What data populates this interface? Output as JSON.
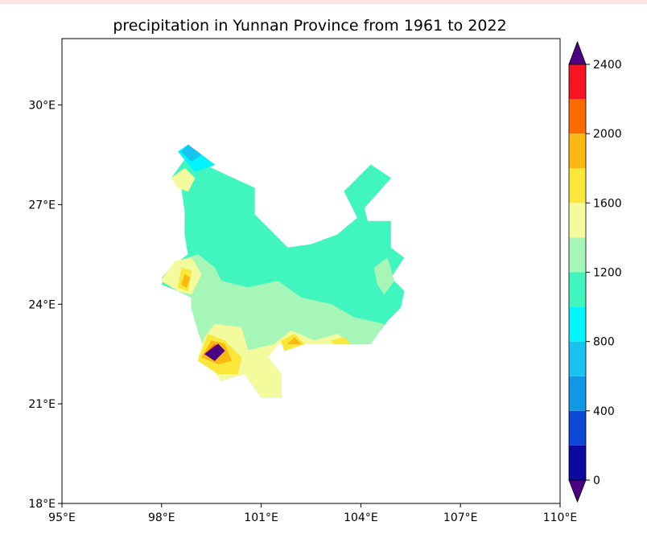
{
  "chart_data": {
    "type": "contour-map",
    "title": "precipitation in Yunnan Province from 1961 to 2022",
    "xlabel": "",
    "ylabel": "",
    "x_axis": {
      "range": [
        95,
        110
      ],
      "ticks": [
        95,
        98,
        101,
        104,
        107,
        110
      ],
      "tick_labels": [
        "95°E",
        "98°E",
        "101°E",
        "104°E",
        "107°E",
        "110°E"
      ]
    },
    "y_axis": {
      "range": [
        18,
        32
      ],
      "ticks": [
        18,
        21,
        24,
        27,
        30
      ],
      "tick_labels": [
        "18°E",
        "21°E",
        "24°E",
        "27°E",
        "30°E"
      ]
    },
    "colorbar": {
      "min": 0,
      "max": 2400,
      "step": 200,
      "extend": "both",
      "tick_values": [
        0,
        400,
        800,
        1200,
        1600,
        2000,
        2400
      ],
      "tick_labels": [
        "0",
        "400",
        "800",
        "1200",
        "1600",
        "2000",
        "2400"
      ],
      "under_color": "#4b0082",
      "over_color": "#4b0082",
      "colors": [
        "#0a0aa0",
        "#0d47d8",
        "#1296e6",
        "#19c3f0",
        "#00f5ff",
        "#40f5be",
        "#a6f7b7",
        "#f3fb9d",
        "#f9e739",
        "#fbb813",
        "#fd6b00",
        "#f41520"
      ]
    },
    "regions": [
      {
        "level": 1000,
        "shape": [
          [
            98.3,
            27.8
          ],
          [
            98.8,
            28.5
          ],
          [
            99.5,
            28.1
          ],
          [
            100.8,
            27.5
          ],
          [
            100.8,
            26.7
          ],
          [
            101.2,
            26.3
          ],
          [
            101.8,
            25.7
          ],
          [
            102.5,
            25.8
          ],
          [
            103.3,
            26.1
          ],
          [
            103.9,
            26.6
          ],
          [
            103.5,
            27.4
          ],
          [
            104.3,
            28.2
          ],
          [
            104.9,
            27.8
          ],
          [
            104.1,
            26.9
          ],
          [
            104.2,
            26.5
          ],
          [
            104.9,
            26.5
          ],
          [
            104.9,
            25.7
          ],
          [
            105.3,
            25.4
          ],
          [
            104.9,
            24.8
          ],
          [
            105.3,
            24.4
          ],
          [
            105.2,
            23.9
          ],
          [
            104.8,
            23.5
          ],
          [
            104.5,
            23.1
          ],
          [
            104.1,
            22.8
          ],
          [
            103.4,
            22.8
          ],
          [
            102.6,
            22.9
          ],
          [
            101.5,
            22.9
          ],
          [
            101.2,
            22.4
          ],
          [
            101.6,
            21.9
          ],
          [
            101.6,
            21.2
          ],
          [
            101.0,
            21.2
          ],
          [
            100.5,
            21.9
          ],
          [
            99.8,
            21.7
          ],
          [
            99.4,
            22.3
          ],
          [
            99.1,
            23.2
          ],
          [
            98.9,
            23.9
          ],
          [
            98.9,
            24.2
          ],
          [
            98.5,
            24.4
          ],
          [
            98.0,
            24.6
          ],
          [
            98.4,
            25.2
          ],
          [
            98.8,
            25.5
          ],
          [
            98.7,
            26.1
          ],
          [
            98.7,
            26.8
          ],
          [
            98.6,
            27.5
          ]
        ]
      },
      {
        "level": 1200,
        "shape": [
          [
            98.5,
            24.4
          ],
          [
            98.0,
            24.8
          ],
          [
            98.5,
            25.3
          ],
          [
            99.1,
            25.5
          ],
          [
            99.6,
            25.1
          ],
          [
            99.8,
            24.7
          ],
          [
            100.6,
            24.5
          ],
          [
            101.5,
            24.7
          ],
          [
            102.2,
            24.2
          ],
          [
            103.1,
            24.0
          ],
          [
            103.8,
            23.6
          ],
          [
            104.7,
            23.4
          ],
          [
            104.3,
            22.8
          ],
          [
            103.4,
            22.8
          ],
          [
            102.6,
            22.9
          ],
          [
            101.5,
            22.9
          ],
          [
            101.2,
            22.4
          ],
          [
            101.6,
            21.9
          ],
          [
            101.6,
            21.2
          ],
          [
            101.0,
            21.2
          ],
          [
            100.5,
            21.9
          ],
          [
            99.8,
            21.7
          ],
          [
            99.4,
            22.3
          ],
          [
            99.1,
            23.2
          ],
          [
            98.9,
            23.9
          ],
          [
            98.9,
            24.2
          ]
        ]
      },
      {
        "level": 1200,
        "shape": [
          [
            104.4,
            25.1
          ],
          [
            104.8,
            25.4
          ],
          [
            105.0,
            24.7
          ],
          [
            104.7,
            24.3
          ],
          [
            104.5,
            24.6
          ]
        ]
      },
      {
        "level": 1400,
        "shape": [
          [
            99.1,
            22.4
          ],
          [
            99.3,
            23.0
          ],
          [
            99.6,
            23.4
          ],
          [
            100.4,
            23.3
          ],
          [
            100.6,
            22.6
          ],
          [
            101.4,
            22.8
          ],
          [
            101.9,
            23.2
          ],
          [
            102.6,
            22.9
          ],
          [
            103.3,
            23.1
          ],
          [
            103.7,
            22.8
          ],
          [
            102.6,
            22.8
          ],
          [
            101.5,
            22.8
          ],
          [
            101.2,
            22.4
          ],
          [
            101.6,
            21.9
          ],
          [
            101.6,
            21.2
          ],
          [
            101.0,
            21.2
          ],
          [
            100.5,
            21.9
          ],
          [
            99.8,
            21.7
          ],
          [
            99.4,
            22.2
          ]
        ]
      },
      {
        "level": 1400,
        "shape": [
          [
            98.0,
            24.7
          ],
          [
            98.4,
            25.3
          ],
          [
            98.9,
            25.4
          ],
          [
            99.2,
            24.9
          ],
          [
            98.9,
            24.3
          ],
          [
            98.5,
            24.4
          ]
        ]
      },
      {
        "level": 1400,
        "shape": [
          [
            98.3,
            27.8
          ],
          [
            98.7,
            28.1
          ],
          [
            99.0,
            27.8
          ],
          [
            98.8,
            27.4
          ],
          [
            98.5,
            27.5
          ]
        ]
      },
      {
        "level": 1600,
        "shape": [
          [
            99.1,
            22.3
          ],
          [
            99.4,
            23.1
          ],
          [
            99.9,
            22.9
          ],
          [
            100.4,
            22.4
          ],
          [
            100.3,
            21.9
          ],
          [
            99.7,
            21.9
          ]
        ]
      },
      {
        "level": 1600,
        "shape": [
          [
            101.6,
            22.9
          ],
          [
            102.0,
            23.1
          ],
          [
            102.3,
            22.8
          ],
          [
            101.7,
            22.6
          ]
        ]
      },
      {
        "level": 1600,
        "shape": [
          [
            103.1,
            22.9
          ],
          [
            103.5,
            23.0
          ],
          [
            103.7,
            22.8
          ],
          [
            103.2,
            22.8
          ]
        ]
      },
      {
        "level": 1600,
        "shape": [
          [
            98.5,
            24.5
          ],
          [
            98.6,
            25.1
          ],
          [
            98.9,
            25.0
          ],
          [
            98.8,
            24.4
          ]
        ]
      },
      {
        "level": 1800,
        "shape": [
          [
            99.2,
            22.4
          ],
          [
            99.5,
            22.9
          ],
          [
            99.9,
            22.8
          ],
          [
            100.1,
            22.3
          ],
          [
            99.7,
            22.2
          ]
        ]
      },
      {
        "level": 1800,
        "shape": [
          [
            101.8,
            22.8
          ],
          [
            102.0,
            23.0
          ],
          [
            102.2,
            22.8
          ]
        ]
      },
      {
        "level": 1800,
        "shape": [
          [
            98.6,
            24.6
          ],
          [
            98.7,
            24.9
          ],
          [
            98.85,
            24.8
          ],
          [
            98.75,
            24.5
          ]
        ]
      },
      {
        "level": 2000,
        "shape": [
          [
            99.3,
            22.5
          ],
          [
            99.6,
            22.8
          ],
          [
            99.8,
            22.6
          ],
          [
            99.6,
            22.3
          ]
        ]
      },
      {
        "level": 2400,
        "shape": [
          [
            99.3,
            22.5
          ],
          [
            99.7,
            22.8
          ],
          [
            99.9,
            22.6
          ],
          [
            99.6,
            22.3
          ]
        ]
      },
      {
        "level": 800,
        "shape": [
          [
            98.5,
            28.6
          ],
          [
            98.8,
            28.8
          ],
          [
            99.6,
            28.2
          ],
          [
            99.0,
            28.0
          ]
        ]
      },
      {
        "level": 600,
        "shape": [
          [
            98.6,
            28.6
          ],
          [
            98.8,
            28.8
          ],
          [
            99.2,
            28.5
          ],
          [
            98.9,
            28.3
          ]
        ]
      }
    ]
  }
}
